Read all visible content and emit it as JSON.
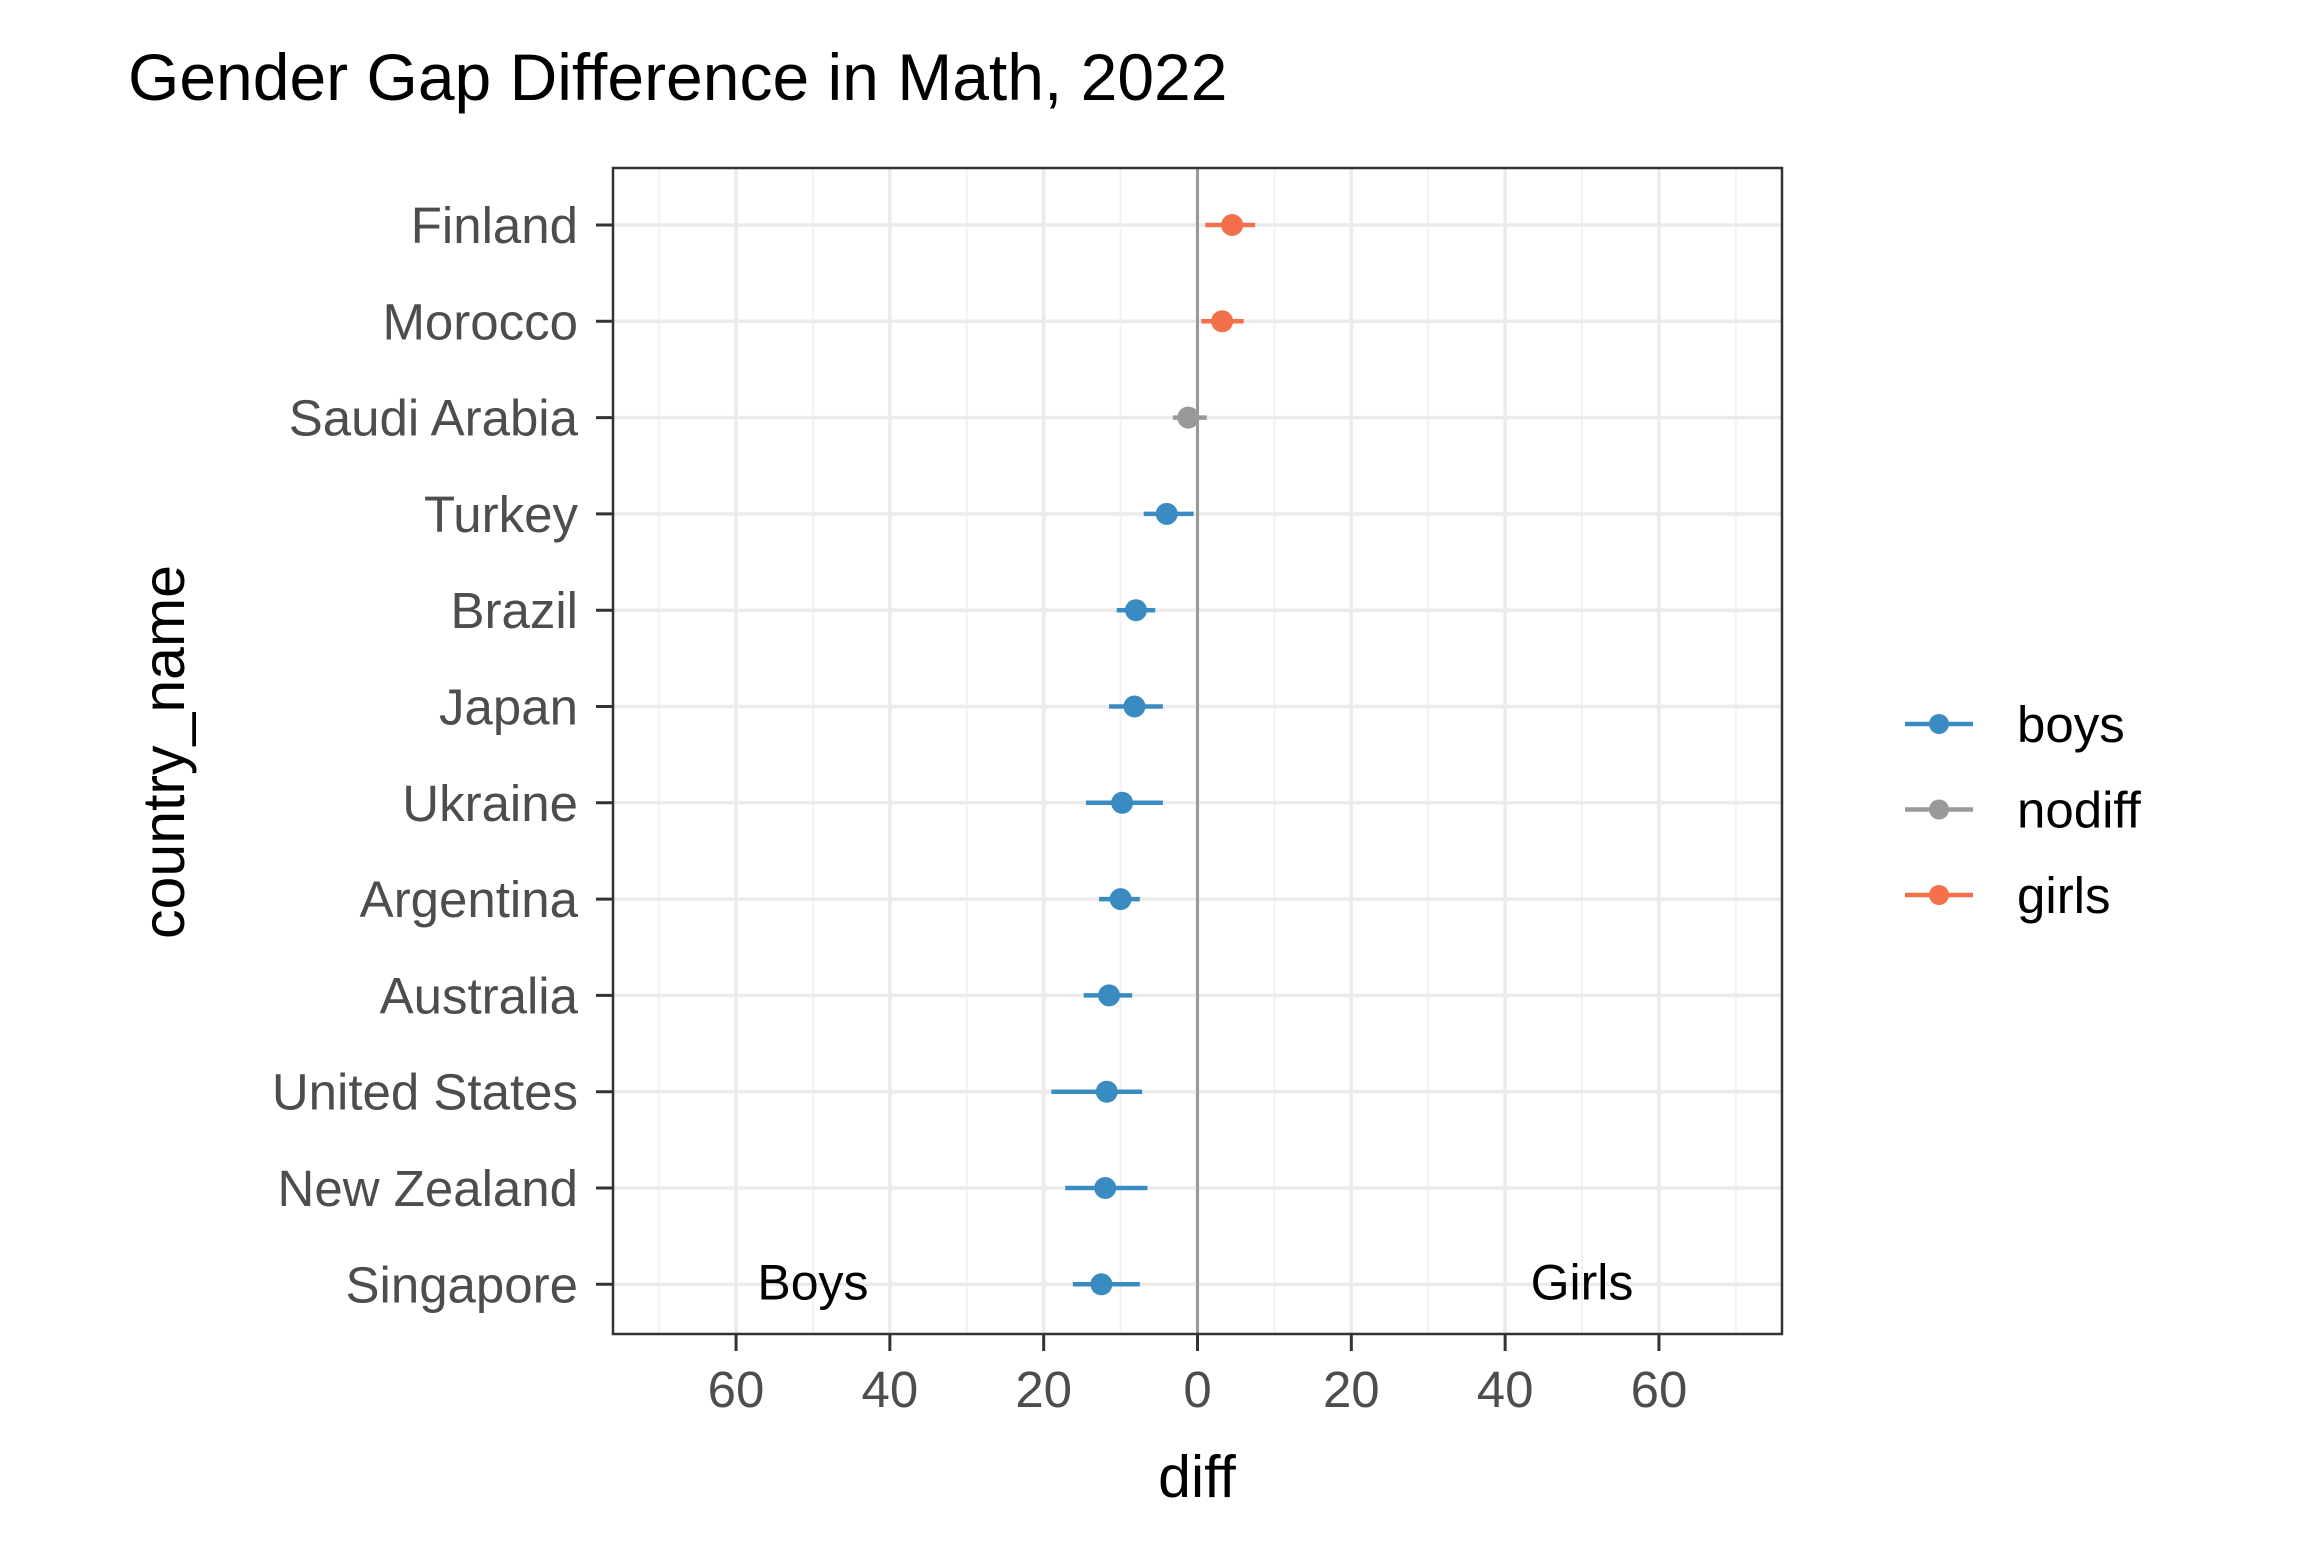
{
  "chart_data": {
    "type": "scatter",
    "title": "Gender Gap Difference in Math, 2022",
    "xlabel": "diff",
    "ylabel": "country_name",
    "xlim": [
      -76,
      76
    ],
    "x_ticks": [
      -60,
      -40,
      -20,
      0,
      20,
      40,
      60
    ],
    "x_tick_labels": [
      "60",
      "40",
      "20",
      "0",
      "20",
      "40",
      "60"
    ],
    "grid": true,
    "legend_position": "right",
    "categories": [
      "Finland",
      "Morocco",
      "Saudi Arabia",
      "Turkey",
      "Brazil",
      "Japan",
      "Ukraine",
      "Argentina",
      "Australia",
      "United States",
      "New Zealand",
      "Singapore"
    ],
    "series": [
      {
        "name": "boys",
        "color": "#3a8bc2",
        "points": [
          {
            "country": "Turkey",
            "value": -4,
            "low": -7,
            "high": -0.5
          },
          {
            "country": "Brazil",
            "value": -8,
            "low": -10.5,
            "high": -5.5
          },
          {
            "country": "Japan",
            "value": -8.2,
            "low": -11.5,
            "high": -4.5
          },
          {
            "country": "Ukraine",
            "value": -9.8,
            "low": -14.5,
            "high": -4.5
          },
          {
            "country": "Argentina",
            "value": -10,
            "low": -12.8,
            "high": -7.5
          },
          {
            "country": "Australia",
            "value": -11.5,
            "low": -14.8,
            "high": -8.5
          },
          {
            "country": "United States",
            "value": -11.8,
            "low": -19,
            "high": -7.2
          },
          {
            "country": "New Zealand",
            "value": -12,
            "low": -17.2,
            "high": -6.5
          },
          {
            "country": "Singapore",
            "value": -12.5,
            "low": -16.2,
            "high": -7.5
          }
        ]
      },
      {
        "name": "nodiff",
        "color": "#999999",
        "points": [
          {
            "country": "Saudi Arabia",
            "value": -1.2,
            "low": -3.2,
            "high": 1.2
          }
        ]
      },
      {
        "name": "girls",
        "color": "#f4704a",
        "points": [
          {
            "country": "Finland",
            "value": 4.5,
            "low": 1,
            "high": 7.5
          },
          {
            "country": "Morocco",
            "value": 3.2,
            "low": 0.5,
            "high": 6
          }
        ]
      }
    ],
    "annotations": [
      {
        "text": "Boys",
        "x": -50,
        "country": "Singapore"
      },
      {
        "text": "Girls",
        "x": 50,
        "country": "Singapore"
      }
    ]
  }
}
